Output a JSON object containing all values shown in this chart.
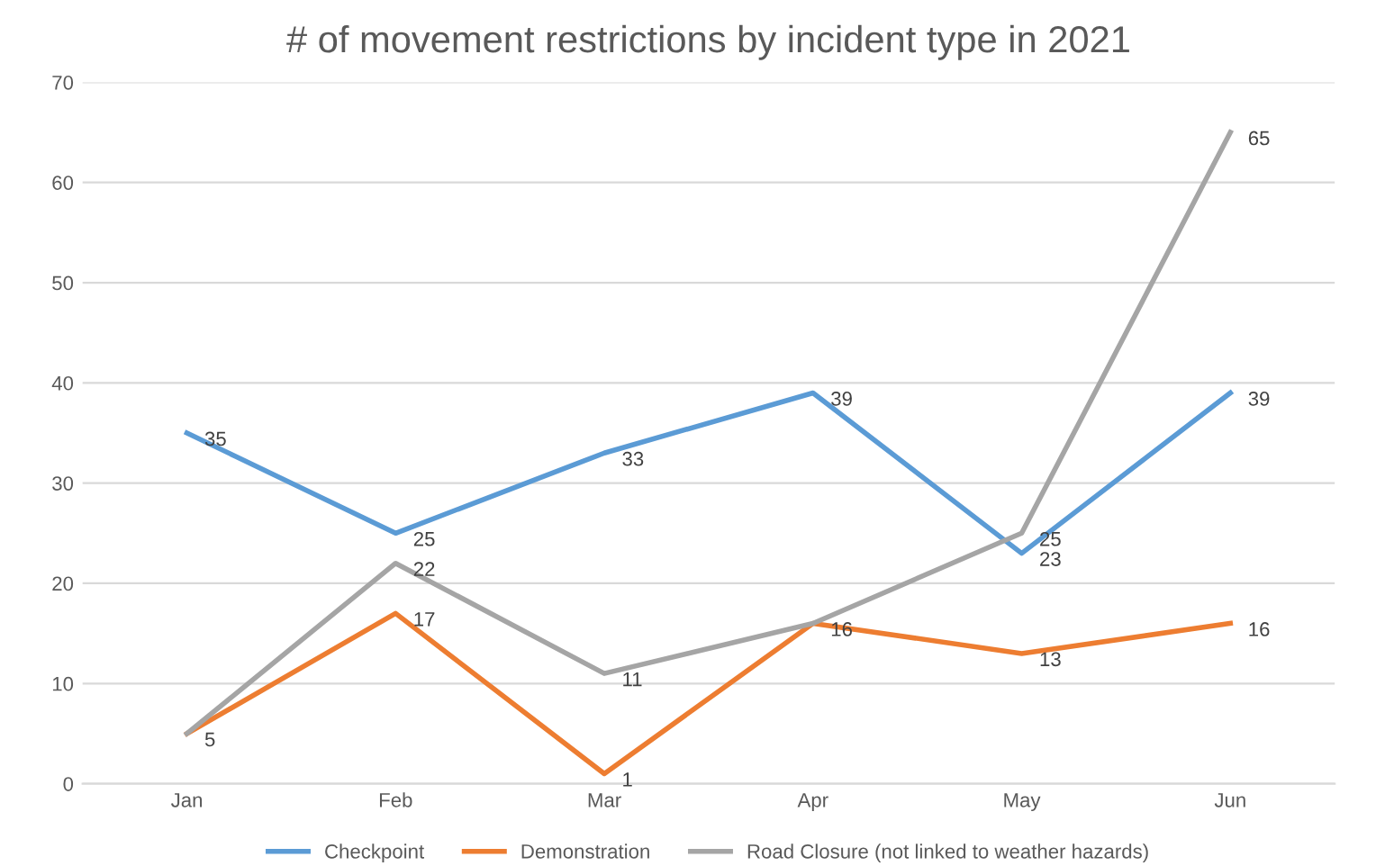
{
  "chart_data": {
    "type": "line",
    "title": "# of movement restrictions by incident type in 2021",
    "categories": [
      "Jan",
      "Feb",
      "Mar",
      "Apr",
      "May",
      "Jun"
    ],
    "series": [
      {
        "name": "Checkpoint",
        "color": "#5b9bd5",
        "values": [
          35,
          25,
          33,
          39,
          23,
          39
        ],
        "value_labels": [
          "35",
          "25",
          "33",
          "39",
          "23",
          "39"
        ]
      },
      {
        "name": "Demonstration",
        "color": "#ed7d31",
        "values": [
          5,
          17,
          1,
          16,
          13,
          16
        ],
        "value_labels": [
          "5",
          "17",
          "1",
          "16",
          "13",
          "16"
        ]
      },
      {
        "name": "Road Closure (not linked to weather hazards)",
        "color": "#a5a5a5",
        "values": [
          5,
          22,
          11,
          16,
          25,
          65
        ],
        "value_labels": [
          null,
          "22",
          "11",
          null,
          "25",
          "65"
        ]
      }
    ],
    "ylim": [
      0,
      70
    ],
    "yticks": [
      0,
      10,
      20,
      30,
      40,
      50,
      60,
      70
    ],
    "grid": "y",
    "legend": "bottom",
    "marker": "none",
    "line_style": "solid"
  }
}
